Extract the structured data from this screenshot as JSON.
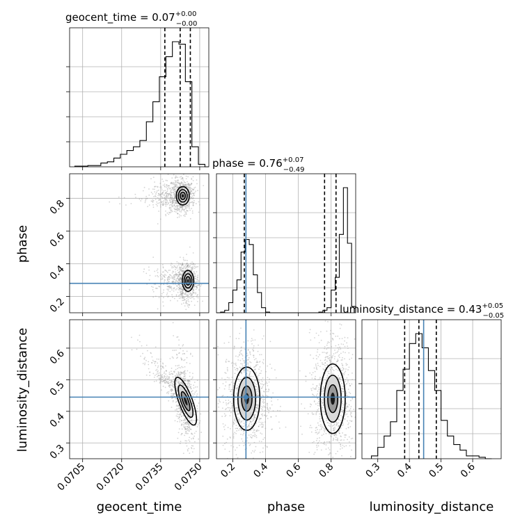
{
  "chart_data": {
    "type": "corner",
    "parameters": [
      "geocent_time",
      "phase",
      "luminosity_distance"
    ],
    "truths": {
      "geocent_time": null,
      "phase": 0.28,
      "luminosity_distance": 0.445
    },
    "titles": [
      {
        "param": "geocent_time",
        "text": "geocent_time = 0.07",
        "sup": "+0.00",
        "sub": "−0.00"
      },
      {
        "param": "phase",
        "text": "phase = 0.76",
        "sup": "+0.07",
        "sub": "−0.49"
      },
      {
        "param": "luminosity_distance",
        "text": "luminosity_distance = 0.43",
        "sup": "+0.05",
        "sub": "−0.05"
      }
    ],
    "axes": {
      "geocent_time": {
        "range": [
          0.07,
          0.07535
        ],
        "ticks": [
          0.0705,
          0.072,
          0.0735,
          0.075
        ],
        "tick_labels": [
          "0.0705",
          "0.0720",
          "0.0735",
          "0.0750"
        ],
        "label": "geocent_time"
      },
      "phase": {
        "range": [
          0.1,
          0.95
        ],
        "ticks": [
          0.2,
          0.4,
          0.6,
          0.8
        ],
        "tick_labels": [
          "0.2",
          "0.4",
          "0.6",
          "0.8"
        ],
        "label": "phase"
      },
      "luminosity_distance": {
        "range": [
          0.25,
          0.69
        ],
        "ticks": [
          0.3,
          0.4,
          0.5,
          0.6
        ],
        "tick_labels": [
          "0.3",
          "0.4",
          "0.5",
          "0.6"
        ],
        "label": "luminosity_distance"
      }
    },
    "histograms": {
      "geocent_time": {
        "edges": [
          0.0702,
          0.07045,
          0.0707,
          0.07095,
          0.0712,
          0.07145,
          0.0717,
          0.07195,
          0.0722,
          0.07245,
          0.0727,
          0.07295,
          0.0732,
          0.07345,
          0.0737,
          0.07395,
          0.0742,
          0.07445,
          0.0747,
          0.07495,
          0.0752,
          0.07535
        ],
        "counts": [
          0.005,
          0.005,
          0.01,
          0.01,
          0.03,
          0.04,
          0.07,
          0.1,
          0.13,
          0.16,
          0.21,
          0.36,
          0.52,
          0.72,
          0.88,
          1.0,
          0.98,
          0.68,
          0.16,
          0.02,
          0.0
        ],
        "quantiles": [
          0.07366,
          0.07425,
          0.07464
        ]
      },
      "phase": {
        "edges": [
          0.1,
          0.125,
          0.15,
          0.175,
          0.2,
          0.225,
          0.25,
          0.275,
          0.3,
          0.325,
          0.35,
          0.375,
          0.4,
          0.425,
          0.45,
          0.475,
          0.5,
          0.525,
          0.55,
          0.575,
          0.6,
          0.625,
          0.65,
          0.675,
          0.7,
          0.725,
          0.75,
          0.775,
          0.8,
          0.825,
          0.85,
          0.875,
          0.9,
          0.925,
          0.95
        ],
        "counts": [
          0.0,
          0.005,
          0.02,
          0.08,
          0.18,
          0.26,
          0.48,
          0.58,
          0.54,
          0.3,
          0.16,
          0.04,
          0.005,
          0.0,
          0.0,
          0.0,
          0.0,
          0.0,
          0.0,
          0.0,
          0.0,
          0.0,
          0.0,
          0.0,
          0.0,
          0.005,
          0.02,
          0.04,
          0.18,
          0.28,
          0.62,
          0.99,
          0.55,
          0.05
        ],
        "quantiles": [
          0.27,
          0.76,
          0.83
        ]
      },
      "luminosity_distance": {
        "edges": [
          0.28,
          0.3,
          0.32,
          0.34,
          0.36,
          0.38,
          0.4,
          0.42,
          0.44,
          0.46,
          0.48,
          0.5,
          0.52,
          0.54,
          0.56,
          0.58,
          0.6,
          0.62,
          0.64,
          0.66
        ],
        "counts": [
          0.02,
          0.08,
          0.16,
          0.26,
          0.48,
          0.63,
          0.81,
          0.88,
          0.78,
          0.62,
          0.48,
          0.27,
          0.16,
          0.1,
          0.06,
          0.02,
          0.02,
          0.01,
          0.0
        ],
        "quantiles": [
          0.385,
          0.43,
          0.485
        ]
      }
    },
    "contour_panels": [
      {
        "x": "geocent_time",
        "y": "phase",
        "modes": [
          {
            "cx": 0.07435,
            "cy": 0.815,
            "sx": 0.000125,
            "sy": 0.028,
            "rho": 0.0
          },
          {
            "cx": 0.07455,
            "cy": 0.295,
            "sx": 0.00011,
            "sy": 0.032,
            "rho": 0.0
          }
        ]
      },
      {
        "x": "geocent_time",
        "y": "luminosity_distance",
        "modes": [
          {
            "cx": 0.07446,
            "cy": 0.432,
            "sx": 0.00013,
            "sy": 0.04,
            "rho": -0.45
          }
        ]
      },
      {
        "x": "phase",
        "y": "luminosity_distance",
        "modes": [
          {
            "cx": 0.285,
            "cy": 0.44,
            "sx": 0.04,
            "sy": 0.05,
            "rho": 0.0
          },
          {
            "cx": 0.81,
            "cy": 0.44,
            "sx": 0.038,
            "sy": 0.055,
            "rho": 0.0
          }
        ]
      }
    ]
  }
}
